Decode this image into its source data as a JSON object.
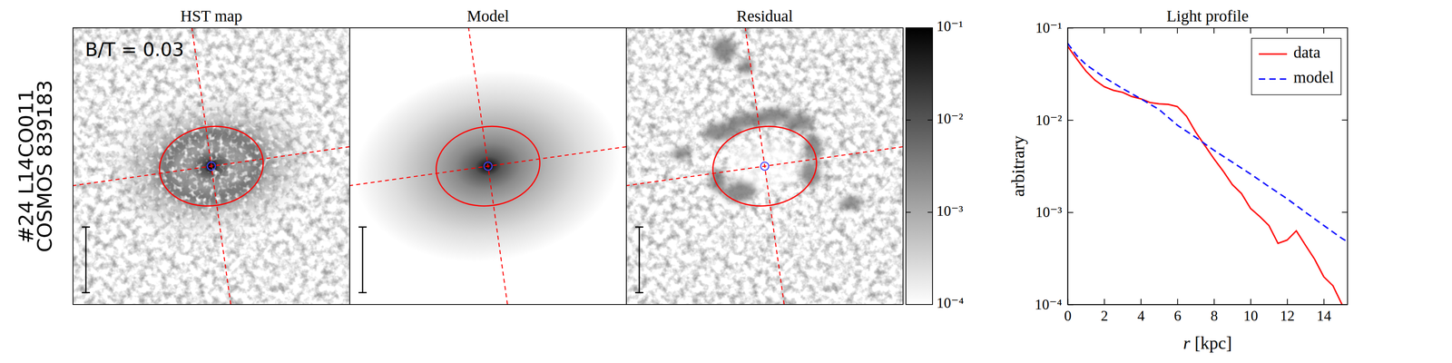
{
  "figure": {
    "row_label": [
      "#24  L14CO011",
      "COSMOS 839183"
    ]
  },
  "chart_data": [
    {
      "type": "image",
      "title": "HST map",
      "annotation": "B/T = 0.03"
    },
    {
      "type": "image",
      "title": "Model"
    },
    {
      "type": "image",
      "title": "Residual",
      "colorbar": {
        "range": [
          0.0001,
          0.1
        ],
        "log": true,
        "ticks": [
          {
            "value": 0.1,
            "label": "10⁻¹"
          },
          {
            "value": 0.01,
            "label": "10⁻²"
          },
          {
            "value": 0.001,
            "label": "10⁻³"
          },
          {
            "value": 0.0001,
            "label": "10⁻⁴"
          }
        ]
      }
    },
    {
      "type": "line",
      "title": "Light profile",
      "x_label": "r [kpc]",
      "y_label": "arbitrary",
      "log": "y",
      "legend": "upper right",
      "xlim": [
        0,
        15.3
      ],
      "xticks": [
        0,
        2,
        4,
        6,
        8,
        10,
        12,
        14
      ],
      "ylim": [
        0.0001,
        0.1
      ],
      "yticks": [
        {
          "value": 0.0001,
          "label": "10⁻⁴"
        },
        {
          "value": 0.001,
          "label": "10⁻³"
        },
        {
          "value": 0.01,
          "label": "10⁻²"
        },
        {
          "value": 0.1,
          "label": "10⁻¹"
        }
      ],
      "series": [
        {
          "name": "data",
          "color": "#ff0000",
          "line_style": "solid",
          "x": [
            0,
            0.5,
            1,
            1.5,
            2,
            2.5,
            3,
            3.5,
            4,
            4.5,
            5,
            5.5,
            6,
            6.5,
            7,
            7.5,
            8,
            8.5,
            9,
            9.5,
            10,
            10.5,
            11,
            11.5,
            12,
            12.5,
            13,
            13.5,
            14,
            14.5,
            15
          ],
          "values": [
            0.063,
            0.046,
            0.034,
            0.027,
            0.023,
            0.021,
            0.02,
            0.018,
            0.017,
            0.0155,
            0.015,
            0.0148,
            0.014,
            0.011,
            0.0074,
            0.0053,
            0.0038,
            0.0028,
            0.002,
            0.0016,
            0.0011,
            0.0009,
            0.00072,
            0.00046,
            0.0005,
            0.00063,
            0.00044,
            0.00031,
            0.0002,
            0.00016,
            0.0001
          ]
        },
        {
          "name": "model",
          "color": "#0000ff",
          "line_style": "dashed",
          "x": [
            0,
            0.5,
            1,
            2,
            3,
            4,
            5,
            6,
            7,
            8,
            9,
            10,
            11,
            12,
            13,
            14,
            15,
            15.3
          ],
          "values": [
            0.068,
            0.05,
            0.04,
            0.029,
            0.022,
            0.017,
            0.013,
            0.0088,
            0.0065,
            0.0047,
            0.0035,
            0.0026,
            0.0019,
            0.0014,
            0.001,
            0.00072,
            0.00052,
            0.00048
          ]
        }
      ]
    }
  ]
}
